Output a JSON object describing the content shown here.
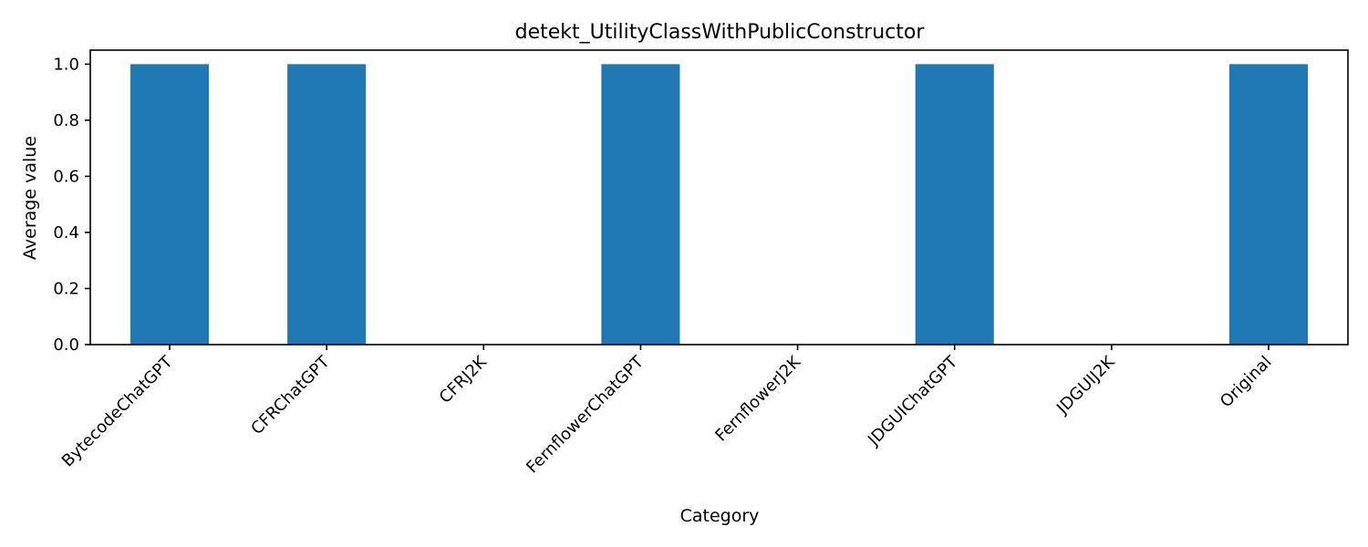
{
  "chart_data": {
    "type": "bar",
    "title": "detekt_UtilityClassWithPublicConstructor",
    "xlabel": "Category",
    "ylabel": "Average value",
    "categories": [
      "BytecodeChatGPT",
      "CFRChatGPT",
      "CFRJ2K",
      "FernflowerChatGPT",
      "FernflowerJ2K",
      "JDGUIChatGPT",
      "JDGUIJ2K",
      "Original"
    ],
    "values": [
      1.0,
      1.0,
      0.0,
      1.0,
      0.0,
      1.0,
      0.0,
      1.0
    ],
    "ylim": [
      0,
      1.05
    ],
    "yticks": [
      "0.0",
      "0.2",
      "0.4",
      "0.6",
      "0.8",
      "1.0"
    ],
    "ytick_values": [
      0.0,
      0.2,
      0.4,
      0.6,
      0.8,
      1.0
    ],
    "bar_color": "#1f77b4",
    "grid": false,
    "legend": "none"
  }
}
